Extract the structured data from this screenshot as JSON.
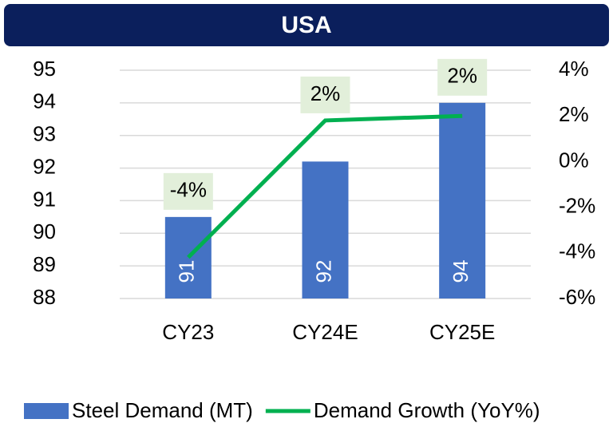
{
  "chart_data": {
    "type": "bar_line",
    "title": "USA",
    "categories": [
      "CY23",
      "CY24E",
      "CY25E"
    ],
    "series": [
      {
        "name": "Steel Demand (MT)",
        "color": "#4472c4",
        "type": "bar",
        "values": [
          90.5,
          92.2,
          94.0
        ],
        "value_labels": [
          "91",
          "92",
          "94"
        ]
      },
      {
        "name": "Demand Growth (YoY%)",
        "color": "#00b050",
        "type": "line",
        "axis": "y2",
        "values": [
          -4.2,
          1.8,
          2.0
        ],
        "value_labels": [
          "-4%",
          "2%",
          "2%"
        ]
      }
    ],
    "ylim": [
      88,
      95
    ],
    "yticks": [
      88,
      89,
      90,
      91,
      92,
      93,
      94,
      95
    ],
    "y2lim": [
      -6,
      4
    ],
    "y2ticks": [
      {
        "value": -6,
        "label": "-6%"
      },
      {
        "value": -4,
        "label": "-4%"
      },
      {
        "value": -2,
        "label": "-2%"
      },
      {
        "value": 0,
        "label": "0%"
      },
      {
        "value": 2,
        "label": "2%"
      },
      {
        "value": 4,
        "label": "4%"
      }
    ],
    "grid": true,
    "legend": "bottom"
  }
}
